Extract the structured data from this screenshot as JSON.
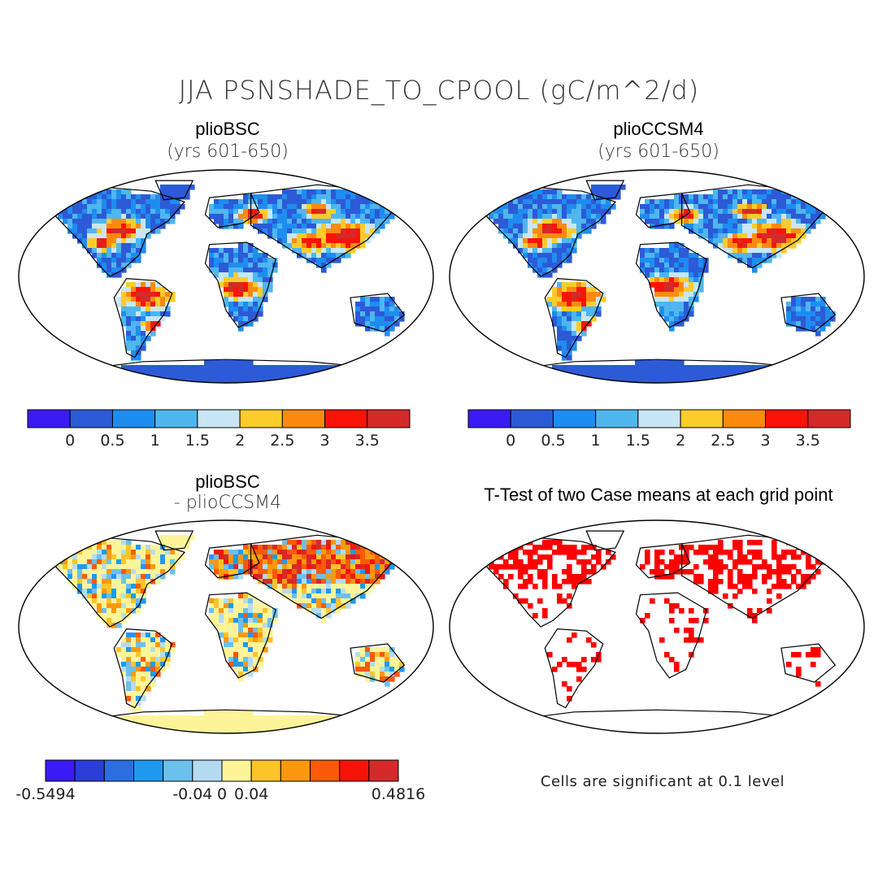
{
  "title": "JJA PSNSHADE_TO_CPOOL (gC/m^2/d)",
  "panels": {
    "top_left": {
      "title": "plioBSC",
      "subtitle": "(yrs 601-650)"
    },
    "top_right": {
      "title": "plioCCSM4",
      "subtitle": "(yrs 601-650)"
    },
    "bottom_left": {
      "title": "plioBSC",
      "subtitle": "- plioCCSM4"
    },
    "bottom_right": {
      "title": "T-Test of two Case means at each grid point",
      "note": "Cells are significant at 0.1 level"
    }
  },
  "colorbar_main": {
    "colors": [
      "#3a1bf5",
      "#2d5ad6",
      "#1e8df0",
      "#4fb6ee",
      "#c8e6f4",
      "#fccc2a",
      "#fd8a0e",
      "#fb1308",
      "#d42a2a"
    ],
    "labels": [
      "0",
      "0.5",
      "1",
      "1.5",
      "2",
      "2.5",
      "3",
      "3.5"
    ]
  },
  "colorbar_diff": {
    "colors": [
      "#3a1bf5",
      "#2a3fd8",
      "#2c6ee0",
      "#1e9af0",
      "#6cc0ec",
      "#b4dcf0",
      "#fdf49a",
      "#fcc428",
      "#fd980e",
      "#fb5a08",
      "#f5140a",
      "#d42a2a"
    ],
    "labels": [
      "-0.5494",
      "-0.04",
      "0",
      "0.04",
      "0.4816"
    ]
  },
  "colors": {
    "ocean": "#ffffff",
    "land_base": "#2d5ad6",
    "antarctica": "#2d5ad6",
    "diff_base": "#fdf49a",
    "significant": "#ff0000",
    "coast": "#000000"
  }
}
